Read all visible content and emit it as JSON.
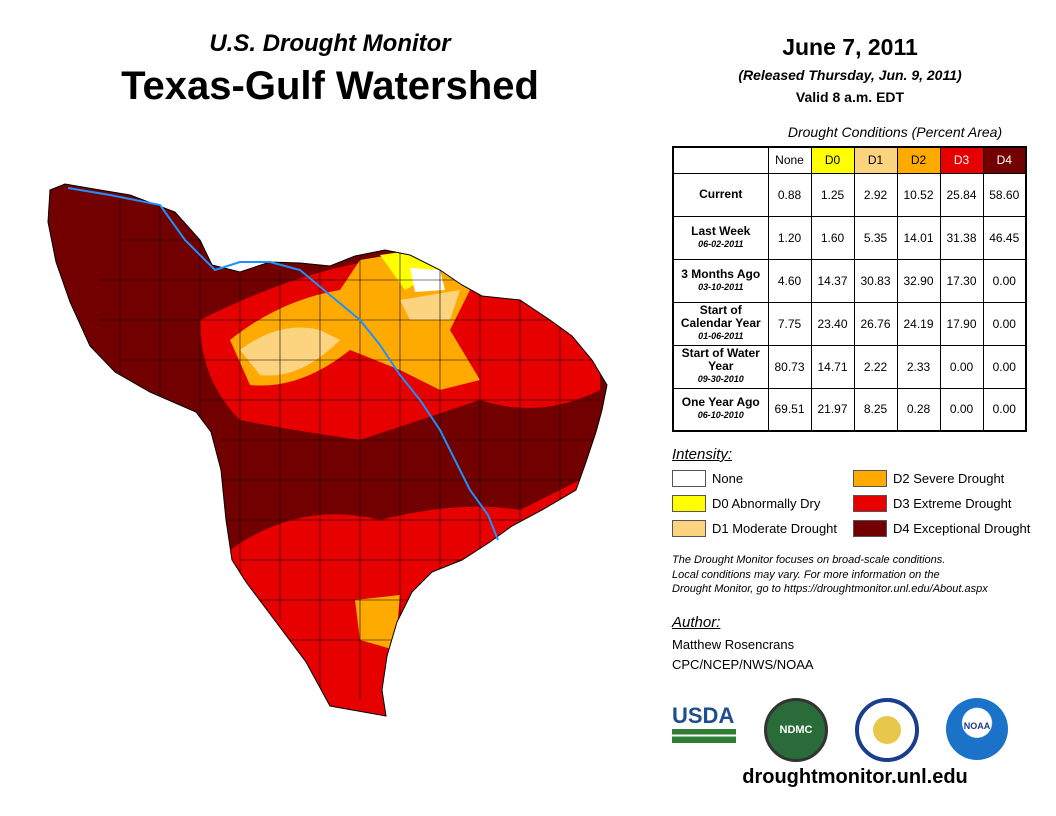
{
  "header": {
    "subtitle": "U.S. Drought Monitor",
    "title": "Texas-Gulf Watershed",
    "date": "June 7, 2011",
    "released": "(Released Thursday, Jun. 9, 2011)",
    "valid": "Valid 8 a.m. EDT"
  },
  "table": {
    "caption": "Drought Conditions (Percent Area)",
    "columns": [
      "None",
      "D0",
      "D1",
      "D2",
      "D3",
      "D4"
    ],
    "rows": [
      {
        "label": "Current",
        "date": "",
        "values": [
          "0.88",
          "1.25",
          "2.92",
          "10.52",
          "25.84",
          "58.60"
        ]
      },
      {
        "label": "Last Week",
        "date": "06-02-2011",
        "values": [
          "1.20",
          "1.60",
          "5.35",
          "14.01",
          "31.38",
          "46.45"
        ]
      },
      {
        "label": "3 Months Ago",
        "date": "03-10-2011",
        "values": [
          "4.60",
          "14.37",
          "30.83",
          "32.90",
          "17.30",
          "0.00"
        ]
      },
      {
        "label": "Start of Calendar Year",
        "date": "01-06-2011",
        "values": [
          "7.75",
          "23.40",
          "26.76",
          "24.19",
          "17.90",
          "0.00"
        ]
      },
      {
        "label": "Start of Water Year",
        "date": "09-30-2010",
        "values": [
          "80.73",
          "14.71",
          "2.22",
          "2.33",
          "0.00",
          "0.00"
        ]
      },
      {
        "label": "One Year Ago",
        "date": "06-10-2010",
        "values": [
          "69.51",
          "21.97",
          "8.25",
          "0.28",
          "0.00",
          "0.00"
        ]
      }
    ]
  },
  "legend": {
    "title": "Intensity:",
    "items": [
      {
        "label": "None",
        "color": "#ffffff"
      },
      {
        "label": "D0 Abnormally Dry",
        "color": "#ffff00"
      },
      {
        "label": "D1 Moderate Drought",
        "color": "#fcd37f"
      },
      {
        "label": "D2 Severe Drought",
        "color": "#ffaa00"
      },
      {
        "label": "D3 Extreme Drought",
        "color": "#e60000"
      },
      {
        "label": "D4 Exceptional Drought",
        "color": "#730000"
      }
    ]
  },
  "note": [
    "The Drought Monitor focuses on broad-scale conditions.",
    "Local conditions may vary. For more information on the",
    "Drought Monitor, go to https://droughtmonitor.unl.edu/About.aspx"
  ],
  "author": {
    "label": "Author:",
    "name": "Matthew Rosencrans",
    "org": "CPC/NCEP/NWS/NOAA"
  },
  "logos": {
    "usda": "USDA",
    "ndmc": "NDMC",
    "noaa": "NOAA"
  },
  "footer_url": "droughtmonitor.unl.edu"
}
